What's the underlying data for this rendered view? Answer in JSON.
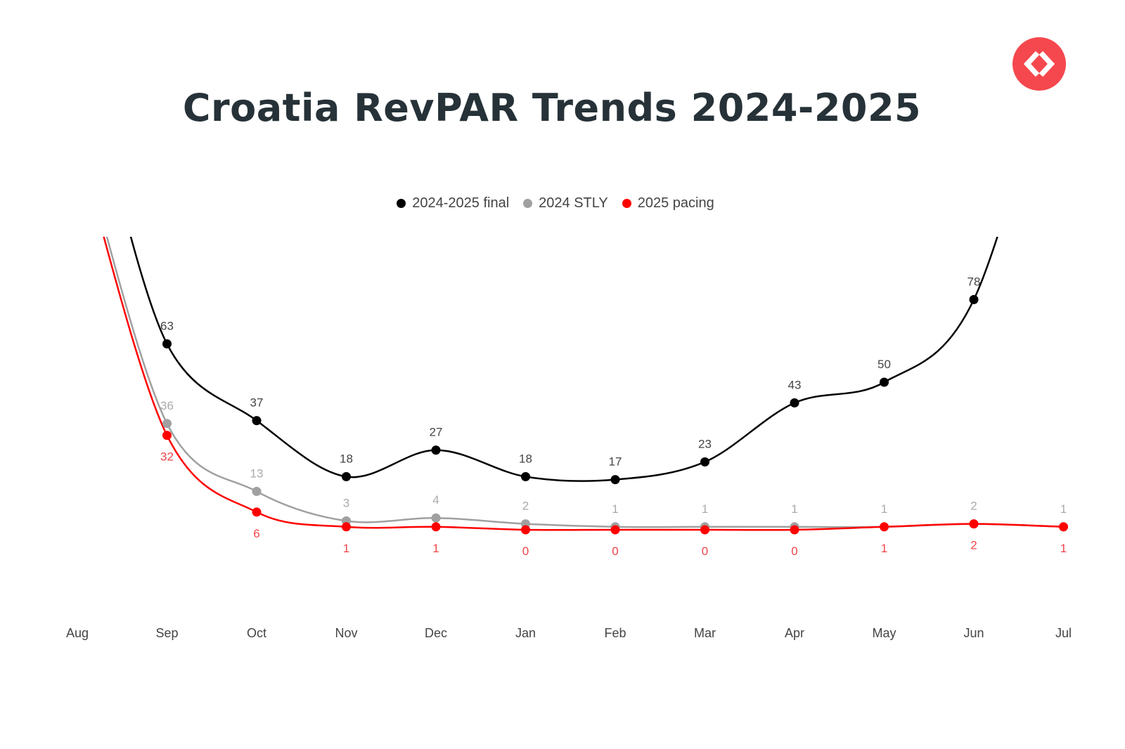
{
  "header": {
    "title": "Croatia RevPAR Trends 2024-2025",
    "logo_icon": "code-brackets-icon",
    "logo_color": "#f5484e"
  },
  "chart_data": {
    "type": "line",
    "title": "Croatia RevPAR Trends 2024-2025",
    "xlabel": "",
    "ylabel": "",
    "grid": false,
    "legend_position": "top-center",
    "categories": [
      "Aug",
      "Sep",
      "Oct",
      "Nov",
      "Dec",
      "Jan",
      "Feb",
      "Mar",
      "Apr",
      "May",
      "Jun",
      "Jul"
    ],
    "series": [
      {
        "name": "2024-2025 final",
        "color": "#000000",
        "label_color": "#444444",
        "label_position": "above",
        "values": [
          null,
          63,
          37,
          18,
          27,
          18,
          17,
          23,
          43,
          50,
          78,
          null
        ]
      },
      {
        "name": "2024 STLY",
        "color": "#a0a0a0",
        "label_color": "#aaaaaa",
        "label_position": "above",
        "values": [
          null,
          36,
          13,
          3,
          4,
          2,
          1,
          1,
          1,
          1,
          2,
          1
        ]
      },
      {
        "name": "2025 pacing",
        "color": "#ff0000",
        "label_color": "#f0454a",
        "label_position": "below",
        "values": [
          null,
          32,
          6,
          1,
          1,
          0,
          0,
          0,
          0,
          1,
          2,
          1
        ]
      }
    ]
  }
}
